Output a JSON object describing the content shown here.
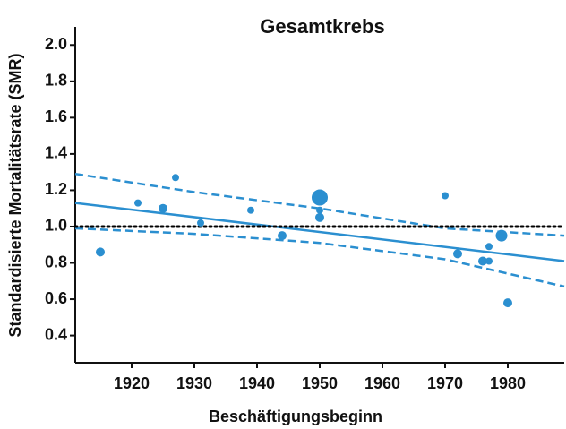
{
  "chart_data": {
    "type": "scatter",
    "title": "Gesamtkrebs",
    "xlabel": "Beschäftigungsbeginn",
    "ylabel": "Standardisierte Mortalitätsrate (SMR)",
    "x": [
      1915,
      1921,
      1925,
      1927,
      1931,
      1939,
      1944,
      1950,
      1950,
      1950,
      1970,
      1972,
      1976,
      1977,
      1977,
      1979,
      1980
    ],
    "values": [
      0.86,
      1.13,
      1.1,
      1.27,
      1.02,
      1.09,
      0.95,
      1.16,
      1.09,
      1.05,
      1.17,
      0.85,
      0.81,
      0.89,
      0.81,
      0.95,
      0.58
    ],
    "sizes": [
      5,
      4,
      5,
      4,
      4,
      4,
      5,
      9,
      4,
      5,
      4,
      5,
      5,
      4,
      4,
      6.5,
      5
    ],
    "color": "#2b8fd0",
    "lines": [
      {
        "x": [
          1911,
          1989
        ],
        "values": [
          1.13,
          0.81
        ],
        "color": "#2b8fd0",
        "style": "solid"
      },
      {
        "x": [
          1911,
          1930,
          1950,
          1970,
          1989
        ],
        "values": [
          1.29,
          1.19,
          1.1,
          0.99,
          0.95
        ],
        "color": "#2b8fd0",
        "style": "dashed"
      },
      {
        "x": [
          1911,
          1930,
          1950,
          1970,
          1989
        ],
        "values": [
          0.99,
          0.96,
          0.91,
          0.82,
          0.67
        ],
        "color": "#2b8fd0",
        "style": "dashed"
      },
      {
        "x": [
          1911,
          1989
        ],
        "values": [
          1.0,
          1.0
        ],
        "color": "#000000",
        "style": "dotted"
      }
    ],
    "xlim": [
      1911,
      1989
    ],
    "ylim": [
      0.25,
      2.1
    ],
    "xticks": [
      1920,
      1930,
      1940,
      1950,
      1960,
      1970,
      1980
    ],
    "yticks": [
      0.4,
      0.6,
      0.8,
      {
        "value": 1.0,
        "label": "1.0"
      },
      1.2,
      1.4,
      1.6,
      1.8,
      {
        "value": 2.0,
        "label": "2.0"
      }
    ]
  }
}
